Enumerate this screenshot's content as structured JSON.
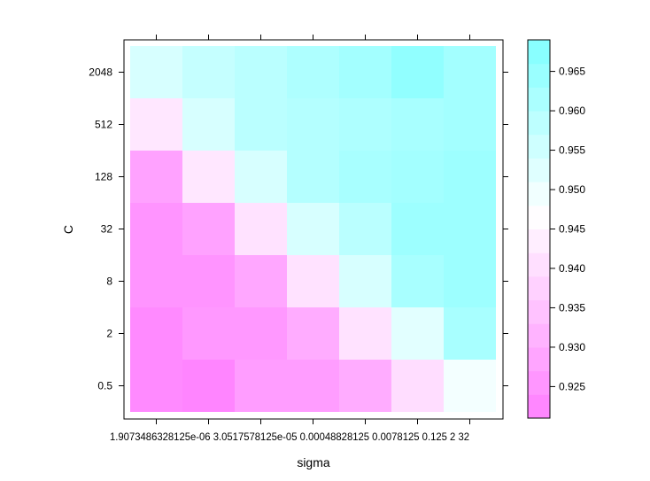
{
  "chart_data": {
    "type": "heatmap",
    "xlabel": "sigma",
    "ylabel": "C",
    "x_tick_labels": [
      "1.9073486328125e-06",
      "3.0517578125e-05",
      "0.00048828125",
      "0.0078125",
      "0.125",
      "2",
      "32"
    ],
    "x_tick_label_text": "1.9073486328125e-06 3.0517578125e-05 0.00048828125 0.0078125 0.125 2 32",
    "y_tick_labels": [
      "0.5",
      "2",
      "8",
      "32",
      "128",
      "512",
      "2048"
    ],
    "colorbar": {
      "range": [
        0.921,
        0.969
      ],
      "tick_values": [
        0.925,
        0.93,
        0.935,
        0.94,
        0.945,
        0.95,
        0.955,
        0.96,
        0.965
      ],
      "tick_labels": [
        "0.925",
        "0.930",
        "0.935",
        "0.940",
        "0.945",
        "0.950",
        "0.955",
        "0.960",
        "0.965"
      ],
      "low_color": "#ff80ff",
      "mid_color": "#ffffff",
      "high_color": "#80ffff",
      "mid_value": 0.947
    },
    "values": [
      [
        0.923,
        0.922,
        0.927,
        0.927,
        0.93,
        0.94,
        0.949
      ],
      [
        0.923,
        0.926,
        0.926,
        0.93,
        0.941,
        0.952,
        0.962
      ],
      [
        0.925,
        0.925,
        0.929,
        0.941,
        0.954,
        0.962,
        0.964
      ],
      [
        0.925,
        0.928,
        0.941,
        0.954,
        0.959,
        0.964,
        0.964
      ],
      [
        0.928,
        0.942,
        0.954,
        0.96,
        0.962,
        0.963,
        0.964
      ],
      [
        0.942,
        0.954,
        0.959,
        0.96,
        0.961,
        0.962,
        0.963
      ],
      [
        0.954,
        0.957,
        0.959,
        0.961,
        0.963,
        0.966,
        0.963
      ]
    ]
  }
}
